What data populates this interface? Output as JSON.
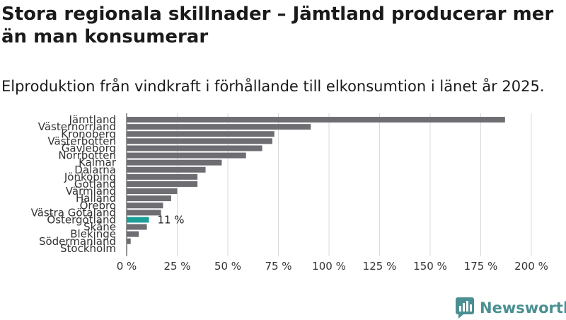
{
  "header": {
    "title": "Stora regionala skillnader – Jämtland producerar mer än man konsumerar",
    "subtitle": "Elproduktion från vindkraft i förhållande till elkonsumtion i länet år 2025."
  },
  "brand": {
    "name": "Newsworthy",
    "color": "#4a8f92"
  },
  "colors": {
    "bar": "#6e6d72",
    "highlight": "#1a9e96",
    "grid": "#d9d9d9",
    "axis": "#333333"
  },
  "chart_data": {
    "type": "bar",
    "orientation": "horizontal",
    "title": "Stora regionala skillnader – Jämtland producerar mer än man konsumerar",
    "subtitle": "Elproduktion från vindkraft i förhållande till elkonsumtion i länet år 2025.",
    "xlabel": "",
    "ylabel": "",
    "xlim": [
      0,
      200
    ],
    "ticks": [
      0,
      25,
      50,
      75,
      100,
      125,
      150,
      175,
      200
    ],
    "tick_labels": [
      "0 %",
      "25 %",
      "50 %",
      "75 %",
      "100 %",
      "125 %",
      "150 %",
      "175 %",
      "200 %"
    ],
    "grid": true,
    "categories": [
      "Jämtland",
      "Västernorrland",
      "Kronoberg",
      "Västerbotten",
      "Gävleborg",
      "Norrbotten",
      "Kalmar",
      "Dalarna",
      "Jönköping",
      "Gotland",
      "Värmland",
      "Halland",
      "Örebro",
      "Västra Götaland",
      "Östergötland",
      "Skåne",
      "Blekinge",
      "Södermanland",
      "Stockholm"
    ],
    "values": [
      187,
      91,
      73,
      72,
      67,
      59,
      47,
      39,
      35,
      35,
      25,
      22,
      18,
      17,
      11,
      10,
      6,
      2,
      0.3
    ],
    "highlight": "Östergötland",
    "data_labels": [
      {
        "category": "Östergötland",
        "text": "11 %"
      }
    ]
  }
}
